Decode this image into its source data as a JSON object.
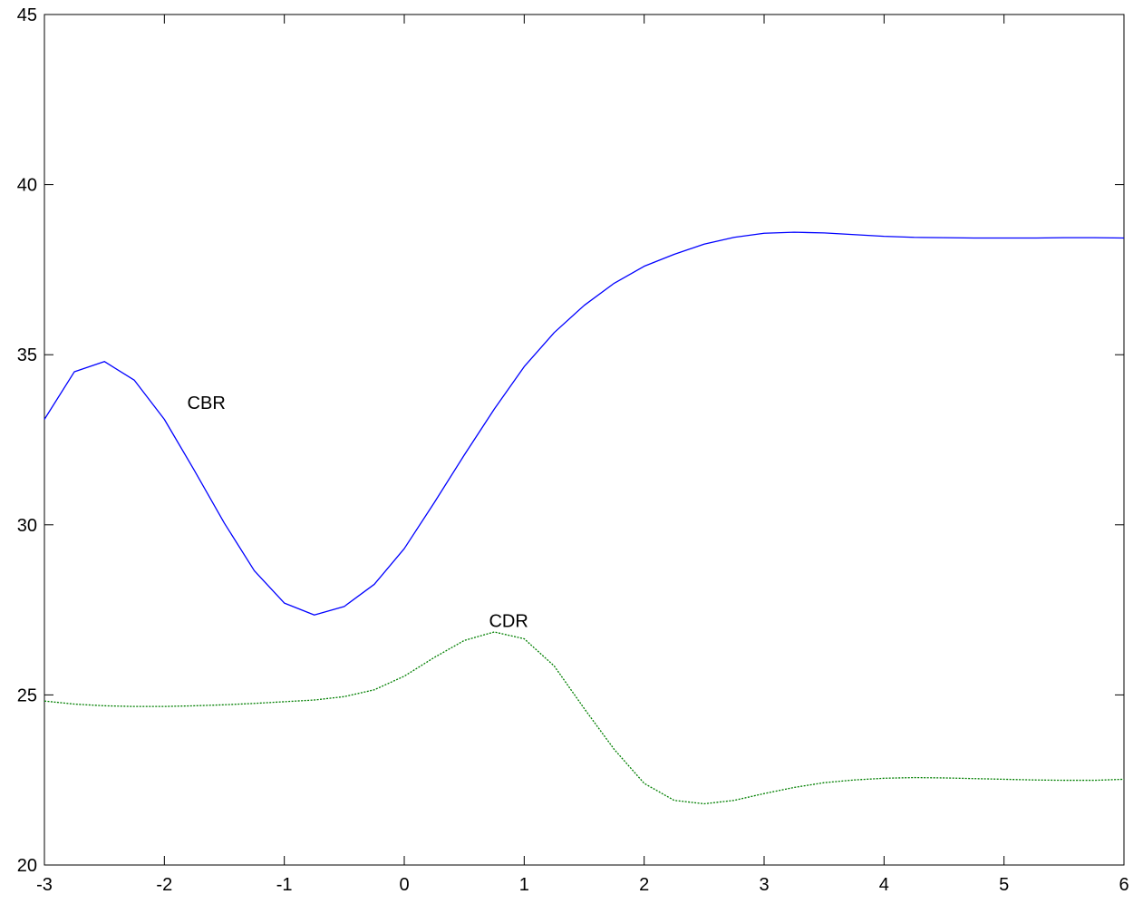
{
  "chart_data": {
    "type": "line",
    "title": "",
    "xlabel": "",
    "ylabel": "",
    "xlim": [
      -3,
      6
    ],
    "ylim": [
      20,
      45
    ],
    "xticks": [
      "-3",
      "-2",
      "-1",
      "0",
      "1",
      "2",
      "3",
      "4",
      "5",
      "6"
    ],
    "yticks": [
      "20",
      "25",
      "30",
      "35",
      "40",
      "45"
    ],
    "grid": false,
    "series": [
      {
        "name": "CBR",
        "color": "#0000ff",
        "style": "solid",
        "x": [
          -3,
          -2.75,
          -2.5,
          -2.25,
          -2,
          -1.75,
          -1.5,
          -1.25,
          -1,
          -0.75,
          -0.5,
          -0.25,
          0,
          0.25,
          0.5,
          0.75,
          1,
          1.25,
          1.5,
          1.75,
          2,
          2.25,
          2.5,
          2.75,
          3,
          3.25,
          3.5,
          3.75,
          4,
          4.25,
          4.5,
          4.75,
          5,
          5.25,
          5.5,
          5.75,
          6
        ],
        "y": [
          33.1,
          34.5,
          34.8,
          34.25,
          33.1,
          31.6,
          30.05,
          28.65,
          27.7,
          27.35,
          27.6,
          28.25,
          29.3,
          30.65,
          32.05,
          33.4,
          34.65,
          35.65,
          36.45,
          37.1,
          37.6,
          37.95,
          38.25,
          38.45,
          38.57,
          38.6,
          38.58,
          38.53,
          38.48,
          38.45,
          38.44,
          38.43,
          38.43,
          38.43,
          38.44,
          38.44,
          38.43
        ]
      },
      {
        "name": "CDR",
        "color": "#007f00",
        "style": "dotted",
        "x": [
          -3,
          -2.75,
          -2.5,
          -2.25,
          -2,
          -1.75,
          -1.5,
          -1.25,
          -1,
          -0.75,
          -0.5,
          -0.25,
          0,
          0.25,
          0.5,
          0.75,
          1,
          1.25,
          1.5,
          1.75,
          2,
          2.25,
          2.5,
          2.75,
          3,
          3.25,
          3.5,
          3.75,
          4,
          4.25,
          4.5,
          4.75,
          5,
          5.25,
          5.5,
          5.75,
          6
        ],
        "y": [
          24.82,
          24.73,
          24.68,
          24.66,
          24.66,
          24.68,
          24.71,
          24.75,
          24.8,
          24.85,
          24.95,
          25.15,
          25.55,
          26.1,
          26.6,
          26.85,
          26.65,
          25.85,
          24.6,
          23.4,
          22.4,
          21.9,
          21.8,
          21.9,
          22.1,
          22.28,
          22.42,
          22.5,
          22.55,
          22.57,
          22.56,
          22.54,
          22.52,
          22.5,
          22.49,
          22.49,
          22.52
        ]
      }
    ],
    "annotations": [
      {
        "text": "CBR",
        "x": -1.65,
        "y": 33.4
      },
      {
        "text": "CDR",
        "x": 0.87,
        "y": 27.0
      }
    ]
  }
}
